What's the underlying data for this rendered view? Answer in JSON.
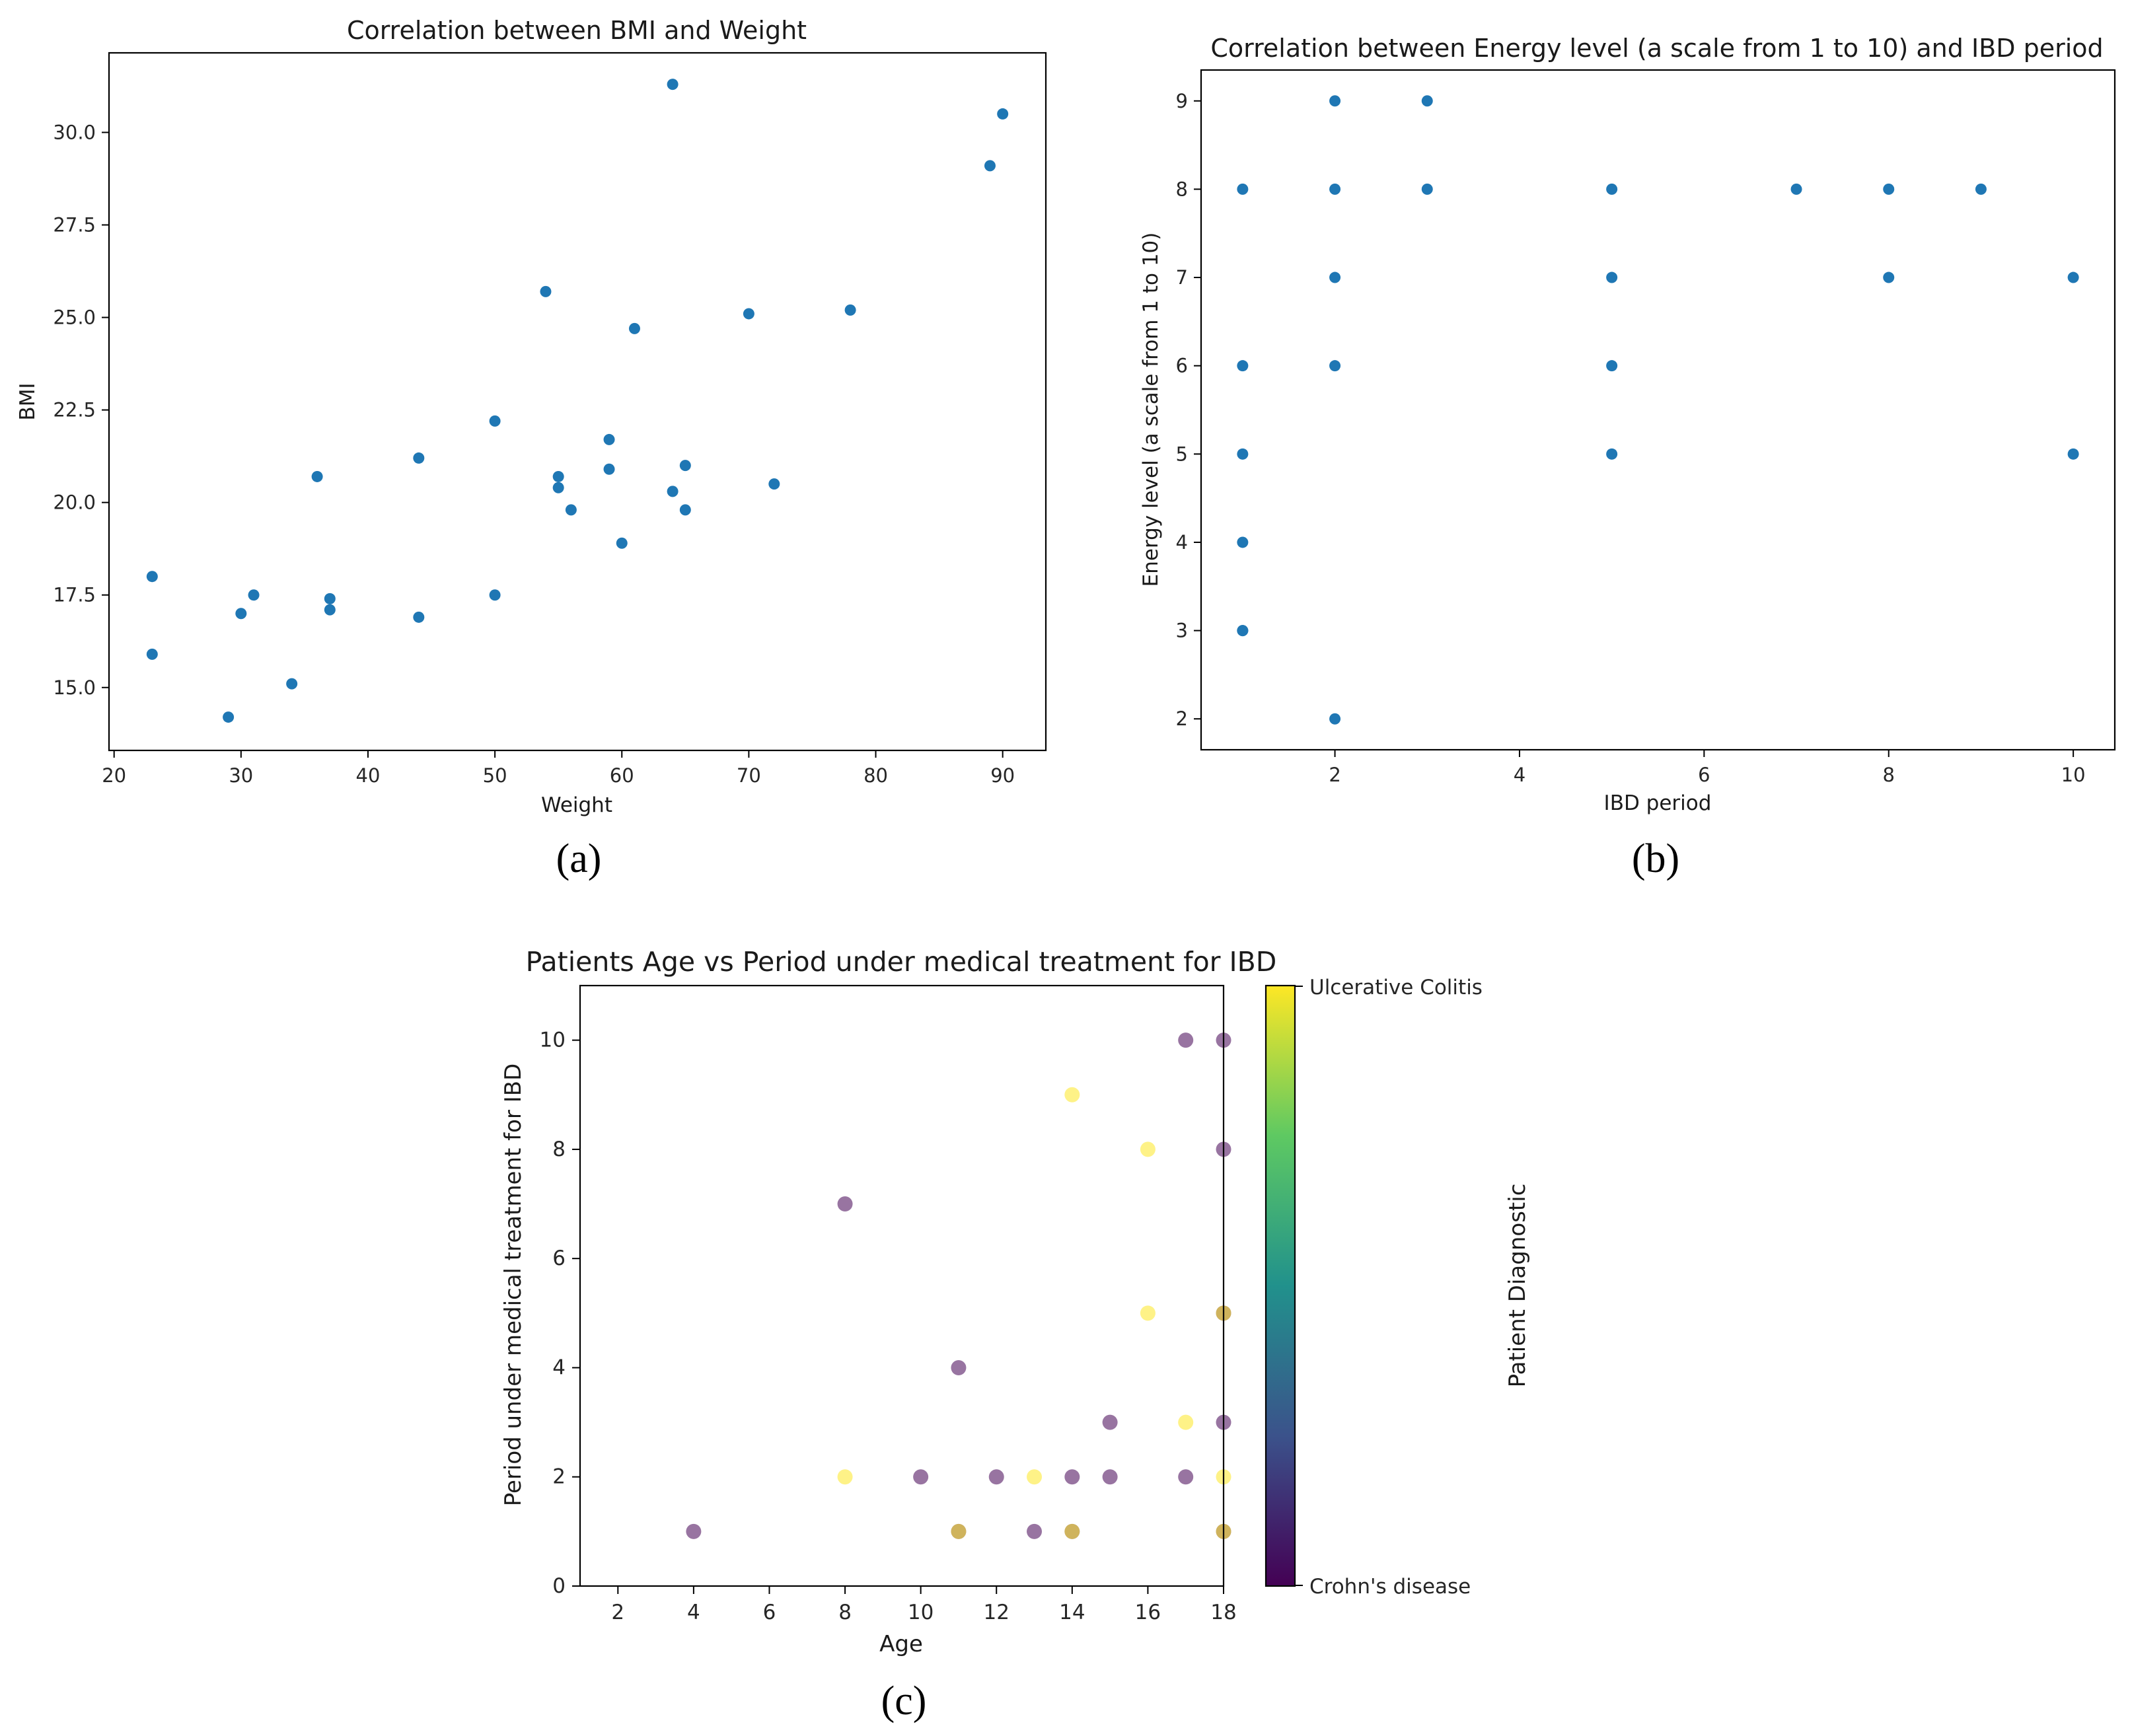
{
  "chart_data": [
    {
      "type": "scatter",
      "title": "Correlation between BMI and Weight",
      "xlabel": "Weight",
      "ylabel": "BMI",
      "caption": "(a)",
      "xlim": [
        19.6,
        93.4
      ],
      "ylim": [
        13.3,
        32.15
      ],
      "xticks": [
        20,
        30,
        40,
        50,
        60,
        70,
        80,
        90
      ],
      "xtick_labels": [
        "20",
        "30",
        "40",
        "50",
        "60",
        "70",
        "80",
        "90"
      ],
      "yticks": [
        15,
        17.5,
        20,
        22.5,
        25,
        27.5,
        30
      ],
      "ytick_labels": [
        "15.0",
        "17.5",
        "20.0",
        "22.5",
        "25.0",
        "27.5",
        "30.0"
      ],
      "marker_color": "#1f77b4",
      "x": [
        23,
        23,
        29,
        30,
        31,
        34,
        36,
        37,
        37,
        44,
        44,
        50,
        50,
        54,
        55,
        55,
        56,
        59,
        59,
        60,
        61,
        64,
        64,
        65,
        65,
        70,
        72,
        78,
        89,
        90
      ],
      "y": [
        18.0,
        15.9,
        14.2,
        17.0,
        17.5,
        15.1,
        20.7,
        17.4,
        17.1,
        21.2,
        16.9,
        22.2,
        17.5,
        25.7,
        20.7,
        20.4,
        19.8,
        21.7,
        20.9,
        18.9,
        24.7,
        31.3,
        20.3,
        21.0,
        19.8,
        25.1,
        20.5,
        25.2,
        29.1,
        30.5
      ]
    },
    {
      "type": "scatter",
      "title": "Correlation between Energy level (a scale from 1 to 10) and IBD period",
      "xlabel": "IBD period",
      "ylabel": "Energy level (a scale from 1 to 10)",
      "caption": "(b)",
      "xlim": [
        0.55,
        10.45
      ],
      "ylim": [
        1.65,
        9.35
      ],
      "xticks": [
        2,
        4,
        6,
        8,
        10
      ],
      "xtick_labels": [
        "2",
        "4",
        "6",
        "8",
        "10"
      ],
      "yticks": [
        2,
        3,
        4,
        5,
        6,
        7,
        8,
        9
      ],
      "ytick_labels": [
        "2",
        "3",
        "4",
        "5",
        "6",
        "7",
        "8",
        "9"
      ],
      "marker_color": "#1f77b4",
      "x": [
        1,
        1,
        1,
        1,
        1,
        1,
        2,
        2,
        2,
        2,
        2,
        3,
        3,
        5,
        5,
        5,
        5,
        7,
        8,
        8,
        9,
        10,
        10
      ],
      "y": [
        8,
        6,
        5,
        4,
        3,
        3,
        9,
        8,
        7,
        6,
        2,
        9,
        8,
        8,
        7,
        6,
        5,
        8,
        8,
        7,
        8,
        7,
        5
      ]
    },
    {
      "type": "scatter",
      "title": "Patients Age vs Period under medical treatment for IBD",
      "xlabel": "Age",
      "ylabel": "Period under medical treatment for IBD",
      "caption": "(c)",
      "xlim": [
        1,
        18
      ],
      "ylim": [
        0,
        11
      ],
      "xticks": [
        2,
        4,
        6,
        8,
        10,
        12,
        14,
        16,
        18
      ],
      "xtick_labels": [
        "2",
        "4",
        "6",
        "8",
        "10",
        "12",
        "14",
        "16",
        "18"
      ],
      "yticks": [
        0,
        2,
        4,
        6,
        8,
        10
      ],
      "ytick_labels": [
        "0",
        "2",
        "4",
        "6",
        "8",
        "10"
      ],
      "colorbar": {
        "label": "Patient Diagnostic",
        "top_label": "Ulcerative Colitis",
        "bottom_label": "Crohn's disease",
        "colors": [
          "#440154",
          "#3b528b",
          "#21918c",
          "#5ec962",
          "#fde725"
        ],
        "alpha": 0.55
      },
      "categories": [
        "Crohn's disease",
        "Ulcerative Colitis"
      ],
      "x": [
        4,
        8,
        8,
        10,
        11,
        11,
        11,
        12,
        13,
        13,
        14,
        14,
        14,
        14,
        15,
        15,
        16,
        16,
        17,
        17,
        17,
        18,
        18,
        18,
        18,
        18,
        18,
        18,
        18
      ],
      "y": [
        1,
        7,
        2,
        2,
        4,
        1,
        1,
        2,
        2,
        1,
        9,
        2,
        1,
        1,
        3,
        2,
        8,
        5,
        10,
        3,
        2,
        10,
        8,
        5,
        5,
        3,
        2,
        1,
        1
      ],
      "category": [
        0,
        0,
        1,
        0,
        0,
        0,
        1,
        0,
        1,
        0,
        1,
        0,
        0,
        1,
        0,
        0,
        1,
        1,
        0,
        1,
        0,
        0,
        0,
        0,
        1,
        0,
        1,
        0,
        1
      ]
    }
  ]
}
